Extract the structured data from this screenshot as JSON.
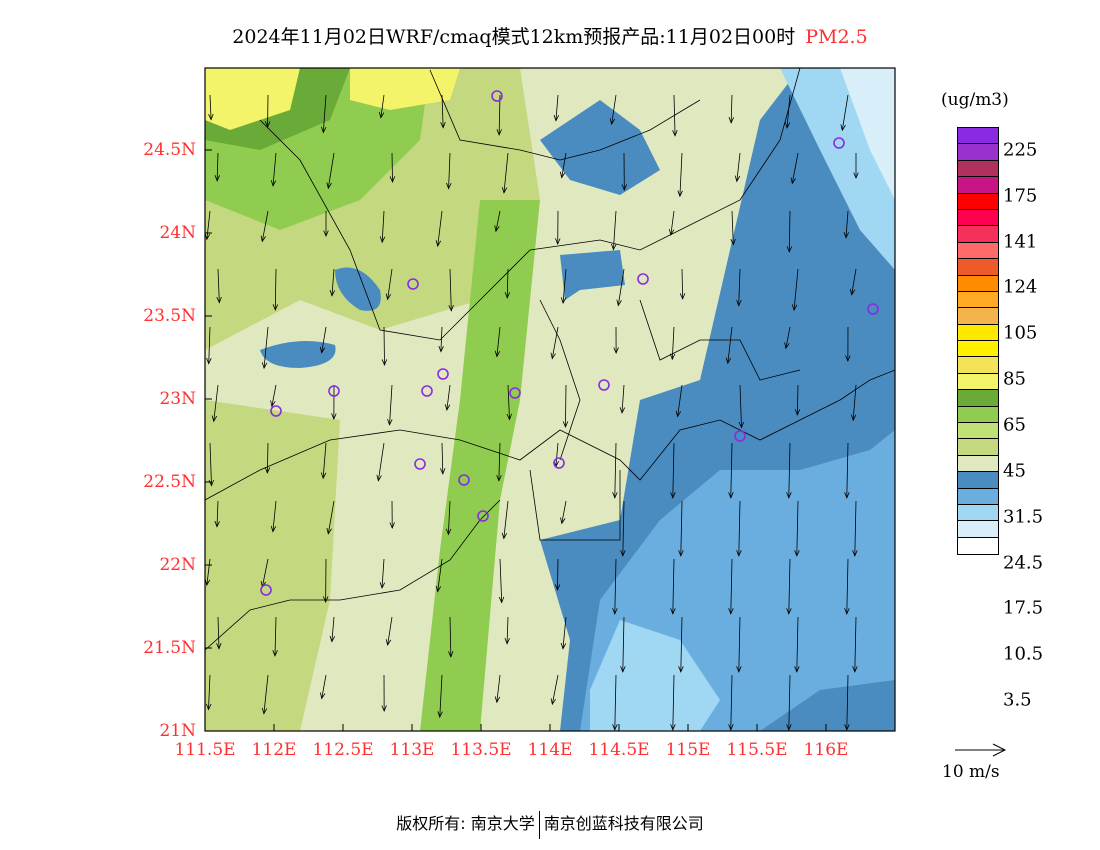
{
  "title": {
    "text": "2024年11月02日WRF/cmaq模式12km预报产品:11月02日00时",
    "pollutant": "PM2.5"
  },
  "axes": {
    "lon_labels": [
      "111.5E",
      "112E",
      "112.5E",
      "113E",
      "113.5E",
      "114E",
      "114.5E",
      "115E",
      "115.5E",
      "116E"
    ],
    "lat_labels": [
      "21N",
      "21.5N",
      "22N",
      "22.5N",
      "23N",
      "23.5N",
      "24N",
      "24.5N"
    ]
  },
  "legend": {
    "unit": "(ug/m3)",
    "colors": [
      "#8a2be2",
      "#9932cc",
      "#b03060",
      "#c71585",
      "#ff0000",
      "#ff0050",
      "#f5305a",
      "#ff6a6a",
      "#ef5a2b",
      "#ff8c00",
      "#ffaa22",
      "#f4b44c",
      "#ffe800",
      "#fff000",
      "#f2e35a",
      "#f4f46a",
      "#6aaa38",
      "#90cc50",
      "#c0e078",
      "#c4d880",
      "#e0e8c0",
      "#4a8cc0",
      "#6aaee0",
      "#a0d8f4",
      "#d8eef8",
      "#ffffff"
    ],
    "labels": [
      "225",
      "175",
      "141",
      "124",
      "105",
      "85",
      "65",
      "45",
      "31.5",
      "24.5",
      "17.5",
      "10.5",
      "3.5"
    ]
  },
  "wind_reference": "10 m/s",
  "footer": {
    "copyright": "版权所有: 南京大学",
    "company": "南京创蓝科技有限公司"
  }
}
